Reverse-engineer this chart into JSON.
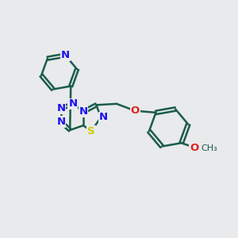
{
  "background_color": "#e8eaeb",
  "bond_color": "#1a5c4a",
  "bond_width": 1.8,
  "atom_colors": {
    "N": "#1a10ee",
    "S": "#cccc00",
    "O": "#dd2222",
    "C": "#1a5c4a"
  },
  "font_size_atom": 9.5,
  "figsize": [
    3.0,
    3.0
  ],
  "dpi": 100,
  "xlim": [
    -2.5,
    5.5
  ],
  "ylim": [
    -3.0,
    3.0
  ]
}
